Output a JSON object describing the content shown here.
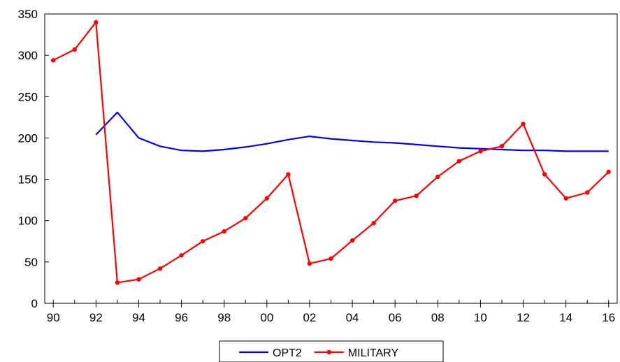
{
  "chart_data": {
    "type": "line",
    "title": "",
    "xlabel": "",
    "ylabel": "",
    "ylim": [
      0,
      350
    ],
    "yticks": [
      0,
      50,
      100,
      150,
      200,
      250,
      300,
      350
    ],
    "xlim": [
      1989.6,
      2016.4
    ],
    "xticks": [
      1990,
      1992,
      1994,
      1996,
      1998,
      2000,
      2002,
      2004,
      2006,
      2008,
      2010,
      2012,
      2014,
      2016
    ],
    "xtick_labels": [
      "90",
      "92",
      "94",
      "96",
      "98",
      "00",
      "02",
      "04",
      "06",
      "08",
      "10",
      "12",
      "14",
      "16"
    ],
    "grid": false,
    "legend": "bottom-center",
    "series": [
      {
        "name": "OPT2",
        "color": "#0000ff",
        "markers": false,
        "x": [
          1992,
          1993,
          1994,
          1995,
          1996,
          1997,
          1998,
          1999,
          2000,
          2001,
          2002,
          2003,
          2004,
          2005,
          2006,
          2007,
          2008,
          2009,
          2010,
          2011,
          2012,
          2013,
          2014,
          2015,
          2016
        ],
        "y": [
          204,
          231,
          200,
          190,
          185,
          184,
          186,
          189,
          193,
          198,
          202,
          199,
          197,
          195,
          194,
          192,
          190,
          188,
          187,
          186,
          185,
          185,
          184,
          184,
          184
        ]
      },
      {
        "name": "MILITARY",
        "color": "#ff0000",
        "markers": true,
        "x": [
          1990,
          1991,
          1992,
          1993,
          1994,
          1995,
          1996,
          1997,
          1998,
          1999,
          2000,
          2001,
          2002,
          2003,
          2004,
          2005,
          2006,
          2007,
          2008,
          2009,
          2010,
          2011,
          2012,
          2013,
          2014,
          2015,
          2016
        ],
        "y": [
          294,
          307,
          340,
          25,
          29,
          42,
          58,
          75,
          87,
          103,
          127,
          156,
          48,
          54,
          76,
          97,
          124,
          130,
          153,
          172,
          184,
          190,
          217,
          156,
          127,
          134,
          159
        ]
      }
    ]
  }
}
